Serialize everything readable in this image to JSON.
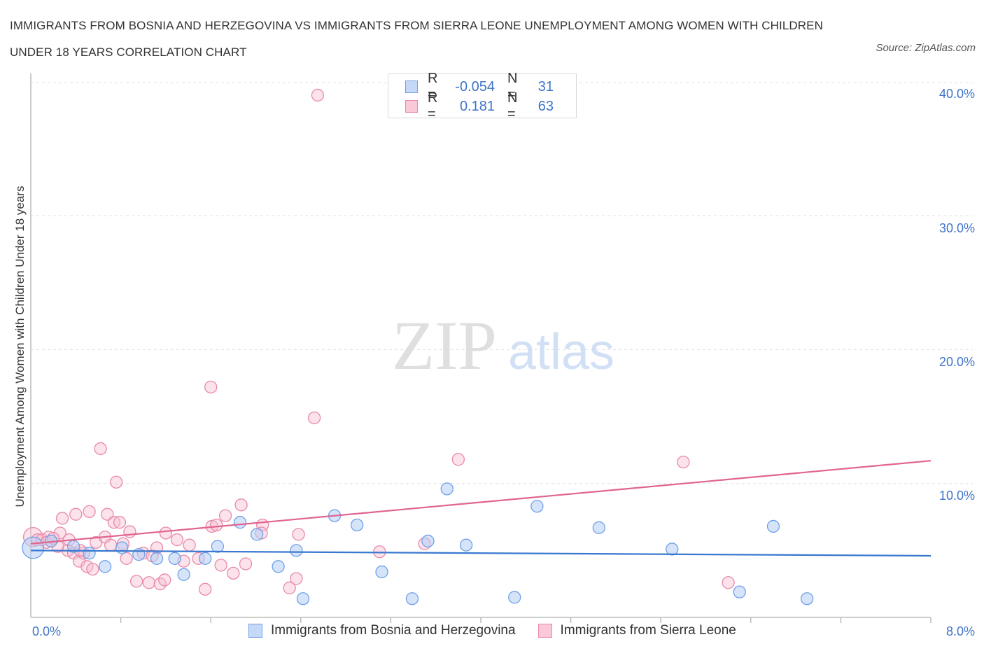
{
  "title": "IMMIGRANTS FROM BOSNIA AND HERZEGOVINA VS IMMIGRANTS FROM SIERRA LEONE UNEMPLOYMENT AMONG WOMEN WITH CHILDREN UNDER 18 YEARS CORRELATION CHART",
  "source": "Source: ZipAtlas.com",
  "watermark": {
    "zip": "ZIP",
    "atlas": "atlas"
  },
  "legend": {
    "rows": [
      {
        "r_label": "R =",
        "r_value": "-0.054",
        "n_label": "N =",
        "n_value": "31",
        "color": "#6fa0e8",
        "fill": "#c5d8f7"
      },
      {
        "r_label": "R =",
        "r_value": "0.181",
        "n_label": "N =",
        "n_value": "63",
        "color": "#e88aa8",
        "fill": "#f9c9d8"
      }
    ]
  },
  "bottom_legend": [
    {
      "label": "Immigrants from Bosnia and Herzegovina",
      "color": "#6fa0e8",
      "fill": "#c5d8f7"
    },
    {
      "label": "Immigrants from Sierra Leone",
      "color": "#e88aa8",
      "fill": "#f9c9d8"
    }
  ],
  "chart_data": {
    "type": "scatter",
    "title": "IMMIGRANTS FROM BOSNIA AND HERZEGOVINA VS IMMIGRANTS FROM SIERRA LEONE UNEMPLOYMENT AMONG WOMEN WITH CHILDREN UNDER 18 YEARS CORRELATION CHART",
    "xlabel": "",
    "ylabel": "Unemployment Among Women with Children Under 18 years",
    "xlim": [
      0,
      8
    ],
    "ylim": [
      0,
      41
    ],
    "x_tick_labels": [
      "0.0%",
      "8.0%"
    ],
    "y_ticks": [
      10,
      20,
      30,
      40
    ],
    "y_tick_labels": [
      "10.0%",
      "20.0%",
      "30.0%",
      "40.0%"
    ],
    "grid": true,
    "legend_position": "top-center",
    "colors": {
      "bosnia": "#3a78d0",
      "sierra": "#e0648f"
    },
    "series": [
      {
        "name": "Immigrants from Bosnia and Herzegovina",
        "trend": {
          "x": [
            0,
            8
          ],
          "y": [
            5.0,
            4.6
          ]
        },
        "points": [
          [
            0.02,
            5.2,
            1.8
          ],
          [
            0.18,
            5.7,
            1
          ],
          [
            0.38,
            5.3,
            1
          ],
          [
            0.52,
            4.8,
            1
          ],
          [
            0.66,
            3.8,
            1
          ],
          [
            0.81,
            5.2,
            1
          ],
          [
            0.96,
            4.7,
            1
          ],
          [
            1.12,
            4.4,
            1
          ],
          [
            1.28,
            4.4,
            1
          ],
          [
            1.36,
            3.2,
            1
          ],
          [
            1.55,
            4.4,
            1
          ],
          [
            1.66,
            5.3,
            1
          ],
          [
            1.86,
            7.1,
            1
          ],
          [
            2.01,
            6.2,
            1
          ],
          [
            2.2,
            3.8,
            1
          ],
          [
            2.36,
            5.0,
            1
          ],
          [
            2.42,
            1.4,
            1
          ],
          [
            2.7,
            7.6,
            1
          ],
          [
            2.9,
            6.9,
            1
          ],
          [
            3.12,
            3.4,
            1
          ],
          [
            3.39,
            1.4,
            1
          ],
          [
            3.53,
            5.7,
            1
          ],
          [
            3.7,
            9.6,
            1
          ],
          [
            3.87,
            5.4,
            1
          ],
          [
            4.3,
            1.5,
            1
          ],
          [
            4.5,
            8.3,
            1
          ],
          [
            5.05,
            6.7,
            1
          ],
          [
            5.7,
            5.1,
            1
          ],
          [
            6.3,
            1.9,
            1
          ],
          [
            6.6,
            6.8,
            1
          ],
          [
            6.9,
            1.4,
            1
          ]
        ]
      },
      {
        "name": "Immigrants from Sierra Leone",
        "trend": {
          "x": [
            0,
            8
          ],
          "y": [
            5.5,
            11.7
          ]
        },
        "points": [
          [
            0.02,
            6.0,
            1.6
          ],
          [
            0.06,
            5.8,
            1
          ],
          [
            0.1,
            5.8,
            1
          ],
          [
            0.16,
            6.0,
            1
          ],
          [
            0.24,
            5.3,
            1
          ],
          [
            0.26,
            6.3,
            1
          ],
          [
            0.28,
            7.4,
            1
          ],
          [
            0.33,
            5.0,
            1
          ],
          [
            0.34,
            5.8,
            1
          ],
          [
            0.38,
            4.8,
            1
          ],
          [
            0.4,
            7.7,
            1
          ],
          [
            0.43,
            4.2,
            1
          ],
          [
            0.47,
            4.8,
            1
          ],
          [
            0.5,
            3.8,
            1
          ],
          [
            0.52,
            7.9,
            1
          ],
          [
            0.55,
            3.6,
            1
          ],
          [
            0.58,
            5.6,
            1
          ],
          [
            0.62,
            12.6,
            1
          ],
          [
            0.66,
            6.0,
            1
          ],
          [
            0.68,
            7.7,
            1
          ],
          [
            0.71,
            5.4,
            1
          ],
          [
            0.74,
            7.1,
            1
          ],
          [
            0.76,
            10.1,
            1
          ],
          [
            0.79,
            7.1,
            1
          ],
          [
            0.82,
            5.5,
            1
          ],
          [
            0.85,
            4.4,
            1
          ],
          [
            0.88,
            6.4,
            1
          ],
          [
            0.94,
            2.7,
            1
          ],
          [
            1.0,
            4.8,
            1
          ],
          [
            1.05,
            2.6,
            1
          ],
          [
            1.08,
            4.6,
            1
          ],
          [
            1.12,
            5.2,
            1
          ],
          [
            1.15,
            2.5,
            1
          ],
          [
            1.19,
            2.8,
            1
          ],
          [
            1.2,
            6.3,
            1
          ],
          [
            1.3,
            5.8,
            1
          ],
          [
            1.36,
            4.2,
            1
          ],
          [
            1.41,
            5.4,
            1
          ],
          [
            1.49,
            4.4,
            1
          ],
          [
            1.55,
            2.1,
            1
          ],
          [
            1.6,
            17.2,
            1
          ],
          [
            1.61,
            6.8,
            1
          ],
          [
            1.65,
            6.9,
            1
          ],
          [
            1.69,
            3.9,
            1
          ],
          [
            1.73,
            7.6,
            1
          ],
          [
            1.8,
            3.3,
            1
          ],
          [
            1.87,
            8.4,
            1
          ],
          [
            1.91,
            4.0,
            1
          ],
          [
            2.06,
            6.9,
            1
          ],
          [
            2.05,
            6.3,
            1
          ],
          [
            2.3,
            2.2,
            1
          ],
          [
            2.36,
            2.9,
            1
          ],
          [
            2.38,
            6.2,
            1
          ],
          [
            2.52,
            14.9,
            1
          ],
          [
            2.55,
            39.0,
            1
          ],
          [
            3.1,
            4.9,
            1
          ],
          [
            3.5,
            5.5,
            1
          ],
          [
            3.8,
            11.8,
            1
          ],
          [
            5.8,
            11.6,
            1
          ],
          [
            6.2,
            2.6,
            1
          ],
          [
            0.14,
            5.6,
            1
          ],
          [
            0.2,
            5.9,
            1
          ],
          [
            0.44,
            5.0,
            1
          ]
        ]
      }
    ]
  }
}
